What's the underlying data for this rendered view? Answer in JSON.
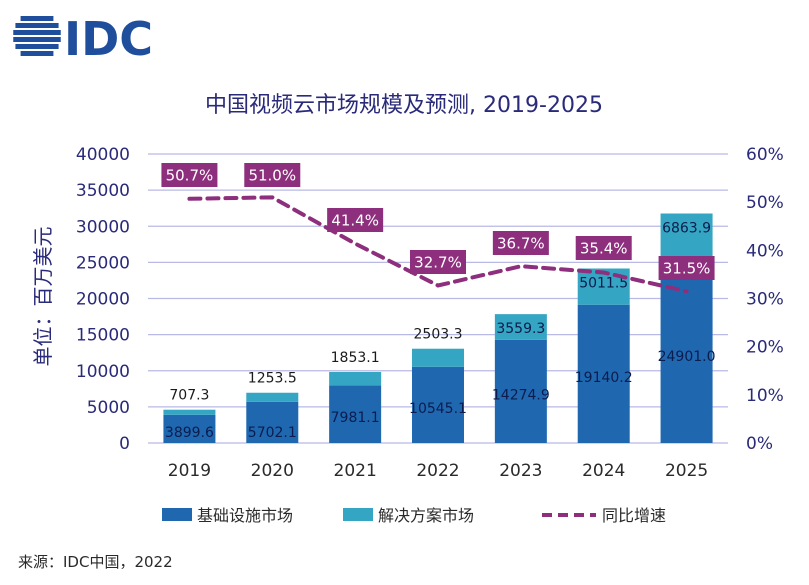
{
  "logo": {
    "text": "IDC",
    "color": "#1f4e9c"
  },
  "title": "中国视频云市场规模及预测, 2019-2025",
  "source": "来源：IDC中国，2022",
  "colors": {
    "infra": "#1f68b0",
    "solution": "#34a5c2",
    "growth": "#8e2f7d",
    "axis_text": "#2a2a7a",
    "grid": "#b9b9e6"
  },
  "chart_data": {
    "type": "bar",
    "stacked": true,
    "categories": [
      "2019",
      "2020",
      "2021",
      "2022",
      "2023",
      "2024",
      "2025"
    ],
    "series": [
      {
        "name": "基础设施市场",
        "values": [
          3899.6,
          5702.1,
          7981.1,
          10545.1,
          14274.9,
          19140.2,
          24901.0
        ]
      },
      {
        "name": "解决方案市场",
        "values": [
          707.3,
          1253.5,
          1853.1,
          2503.3,
          3559.3,
          5011.5,
          6863.9
        ]
      }
    ],
    "line_series": {
      "name": "同比增速",
      "axis": "right",
      "values": [
        50.7,
        51.0,
        41.4,
        32.7,
        36.7,
        35.4,
        31.5
      ]
    },
    "ylabel": "单位：百万美元",
    "ylim": [
      0,
      40000
    ],
    "yticks": [
      "0",
      "5000",
      "10000",
      "15000",
      "20000",
      "25000",
      "30000",
      "35000",
      "40000"
    ],
    "y2lim": [
      0,
      60
    ],
    "y2ticks": [
      "0%",
      "10%",
      "20%",
      "30%",
      "40%",
      "50%",
      "60%"
    ],
    "grid": true,
    "legend_position": "bottom"
  }
}
